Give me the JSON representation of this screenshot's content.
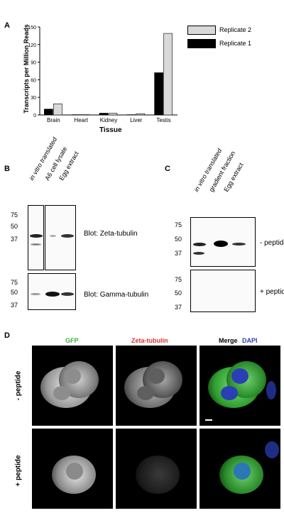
{
  "panelA": {
    "letter": "A",
    "y_axis_title": "Transcripts per Million Reads",
    "x_axis_title": "Tissue",
    "legend": [
      "Replicate 2",
      "Replicate 1"
    ]
  },
  "chart_data": {
    "type": "bar",
    "categories": [
      "Brain",
      "Heart",
      "Kidney",
      "Liver",
      "Testis"
    ],
    "series": [
      {
        "name": "Replicate 1",
        "values": [
          10,
          0.5,
          3,
          0.5,
          72
        ],
        "color": "#000000"
      },
      {
        "name": "Replicate 2",
        "values": [
          19,
          0.5,
          3,
          2,
          139
        ],
        "color": "#d9d9d9"
      }
    ],
    "ylim": [
      0,
      150
    ],
    "yticks": [
      0,
      30,
      60,
      90,
      120,
      150
    ],
    "xlabel": "Tissue",
    "ylabel": "Transcripts per Million Reads",
    "grid": false,
    "legend_position": "top-right"
  },
  "panelB": {
    "letter": "B",
    "lanes": [
      "in vitro translated",
      "A6 cell lysate",
      "Egg extract"
    ],
    "mw_top": [
      "75",
      "50",
      "37"
    ],
    "mw_bottom": [
      "75",
      "50",
      "37"
    ],
    "blot_top": "Blot: Zeta-tubulin",
    "blot_bottom": "Blot: Gamma-tubulin"
  },
  "panelC": {
    "letter": "C",
    "lanes": [
      "in vitro translated",
      "gradient fraction",
      "Egg extract"
    ],
    "mw_top": [
      "75",
      "50",
      "37"
    ],
    "mw_bottom": [
      "75",
      "50",
      "37"
    ],
    "label_top": "- peptide",
    "label_bottom": "+ peptide"
  },
  "panelD": {
    "letter": "D",
    "col_gfp": "GFP",
    "col_zeta": "Zeta-tubulin",
    "col_merge": "Merge",
    "col_dapi": "DAPI",
    "row_minus": "- peptide",
    "row_plus": "+ peptide",
    "colors": {
      "gfp": "#3bb33b",
      "zeta": "#e03030",
      "dapi": "#2b3fb5"
    }
  }
}
